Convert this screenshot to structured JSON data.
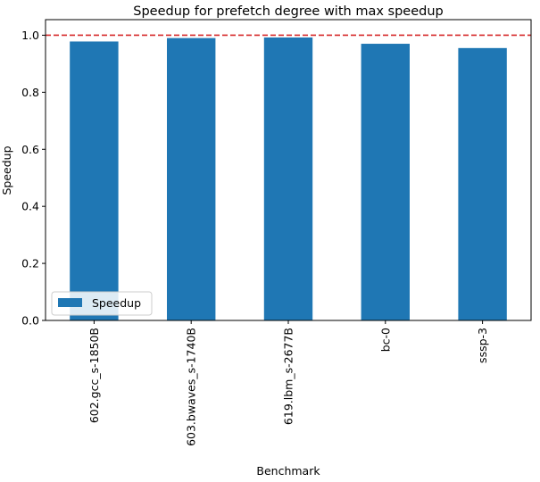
{
  "chart_data": {
    "type": "bar",
    "title": "Speedup for prefetch degree with max speedup",
    "xlabel": "Benchmark",
    "ylabel": "Speedup",
    "categories": [
      "602.gcc_s-1850B",
      "603.bwaves_s-1740B",
      "619.lbm_s-2677B",
      "bc-0",
      "sssp-3"
    ],
    "series": [
      {
        "name": "Speedup",
        "values": [
          0.978,
          0.99,
          0.992,
          0.97,
          0.955
        ],
        "color": "#1f77b4"
      }
    ],
    "ylim": [
      0,
      1.0546
    ],
    "yticks": [
      0.0,
      0.2,
      0.4,
      0.6,
      0.8,
      1.0
    ],
    "ytick_labels": [
      "0.0",
      "0.2",
      "0.4",
      "0.6",
      "0.8",
      "1.0"
    ],
    "reference_line": {
      "y": 1.0,
      "color": "#d62728",
      "style": "dashed"
    },
    "grid": false,
    "legend": {
      "position": "lower-left"
    }
  }
}
